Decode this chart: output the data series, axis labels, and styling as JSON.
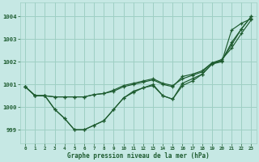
{
  "background_color": "#c6e8e4",
  "grid_color": "#9ecfc4",
  "line_color": "#1e5c30",
  "marker_color": "#1e5c30",
  "xlabel": "Graphe pression niveau de la mer (hPa)",
  "xlabel_color": "#1e5c30",
  "ylim": [
    998.4,
    1004.6
  ],
  "xlim": [
    -0.5,
    23.5
  ],
  "yticks": [
    999,
    1000,
    1001,
    1002,
    1003,
    1004
  ],
  "xticks": [
    0,
    1,
    2,
    3,
    4,
    5,
    6,
    7,
    8,
    9,
    10,
    11,
    12,
    13,
    14,
    15,
    16,
    17,
    18,
    19,
    20,
    21,
    22,
    23
  ],
  "series": [
    [
      1000.9,
      1000.5,
      1000.5,
      999.9,
      999.5,
      999.0,
      999.0,
      999.2,
      999.4,
      999.9,
      1000.4,
      1000.7,
      1000.85,
      1001.0,
      1000.5,
      1000.35,
      1000.95,
      1001.15,
      1001.45,
      1001.9,
      1002.0,
      1003.4,
      1003.7,
      1003.9
    ],
    [
      1000.9,
      1000.5,
      1000.5,
      999.9,
      999.5,
      999.0,
      999.0,
      999.2,
      999.4,
      999.9,
      1000.4,
      1000.65,
      1000.85,
      1000.95,
      1000.5,
      1000.35,
      1001.05,
      1001.25,
      1001.45,
      1001.9,
      1002.05,
      1002.75,
      1003.45,
      1004.0
    ],
    [
      1000.9,
      1000.5,
      1000.5,
      1000.45,
      1000.45,
      1000.45,
      1000.45,
      1000.55,
      1000.6,
      1000.75,
      1000.95,
      1001.05,
      1001.15,
      1001.25,
      1001.05,
      1000.95,
      1001.25,
      1001.4,
      1001.55,
      1001.95,
      1002.05,
      1002.85,
      1003.45,
      1004.0
    ],
    [
      1000.9,
      1000.5,
      1000.5,
      1000.45,
      1000.45,
      1000.45,
      1000.45,
      1000.55,
      1000.6,
      1000.7,
      1000.9,
      1001.0,
      1001.1,
      1001.2,
      1001.0,
      1000.9,
      1001.35,
      1001.45,
      1001.6,
      1001.95,
      1002.1,
      1002.6,
      1003.25,
      1003.85
    ]
  ]
}
